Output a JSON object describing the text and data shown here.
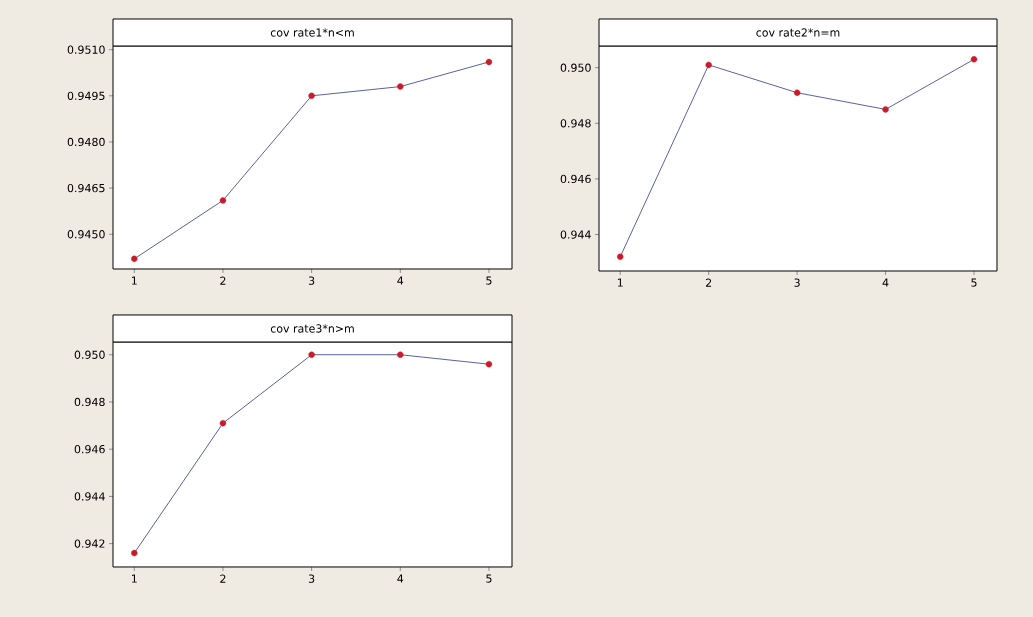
{
  "chart_data": [
    {
      "type": "line",
      "title": "cov rate1*n<m",
      "x": [
        1,
        2,
        3,
        4,
        5
      ],
      "xlim": [
        0.76,
        5.26
      ],
      "xticks": [
        1,
        2,
        3,
        4,
        5
      ],
      "ylim": [
        0.94387,
        0.95112
      ],
      "yticks": [
        {
          "value": 0.945,
          "label": "0.9450"
        },
        0.9465,
        {
          "value": 0.948,
          "label": "0.9480"
        },
        0.9495,
        {
          "value": 0.951,
          "label": "0.9510"
        }
      ],
      "marker": "circle",
      "line_style": "solid",
      "grid": false,
      "series": [
        {
          "color": "#2e3a8c",
          "colors": [
            "#cc1a2a",
            "#cc1a2a",
            "#cc1a2a",
            "#cc1a2a",
            "#cc1a2a"
          ],
          "values": [
            0.9442,
            0.9461,
            0.9495,
            0.9498,
            0.9506
          ]
        }
      ]
    },
    {
      "type": "line",
      "title": "cov rate2*n=m",
      "x": [
        1,
        2,
        3,
        4,
        5
      ],
      "xlim": [
        0.76,
        5.26
      ],
      "xticks": [
        1,
        2,
        3,
        4,
        5
      ],
      "ylim": [
        0.94269,
        0.95078
      ],
      "yticks": [
        0.944,
        0.946,
        0.948,
        {
          "value": 0.95,
          "label": "0.950"
        }
      ],
      "marker": "circle",
      "line_style": "solid",
      "grid": false,
      "series": [
        {
          "color": "#2e3a8c",
          "colors": [
            "#cc1a2a",
            "#cc1a2a",
            "#cc1a2a",
            "#cc1a2a",
            "#cc1a2a"
          ],
          "values": [
            0.9432,
            0.9501,
            0.9491,
            0.9485,
            0.9503
          ]
        }
      ]
    },
    {
      "type": "line",
      "title": "cov rate3*n>m",
      "x": [
        1,
        2,
        3,
        4,
        5
      ],
      "xlim": [
        0.76,
        5.26
      ],
      "xticks": [
        1,
        2,
        3,
        4,
        5
      ],
      "ylim": [
        0.94101,
        0.95054
      ],
      "yticks": [
        0.942,
        0.944,
        0.946,
        0.948,
        {
          "value": 0.95,
          "label": "0.950"
        }
      ],
      "marker": "circle",
      "line_style": "solid",
      "grid": false,
      "series": [
        {
          "color": "#2e3a8c",
          "colors": [
            "#cc1a2a",
            "#cc1a2a",
            "#cc1a2a",
            "#cc1a2a",
            "#cc1a2a"
          ],
          "values": [
            0.9416,
            0.9471,
            0.95,
            0.95,
            0.9496
          ]
        }
      ]
    }
  ]
}
